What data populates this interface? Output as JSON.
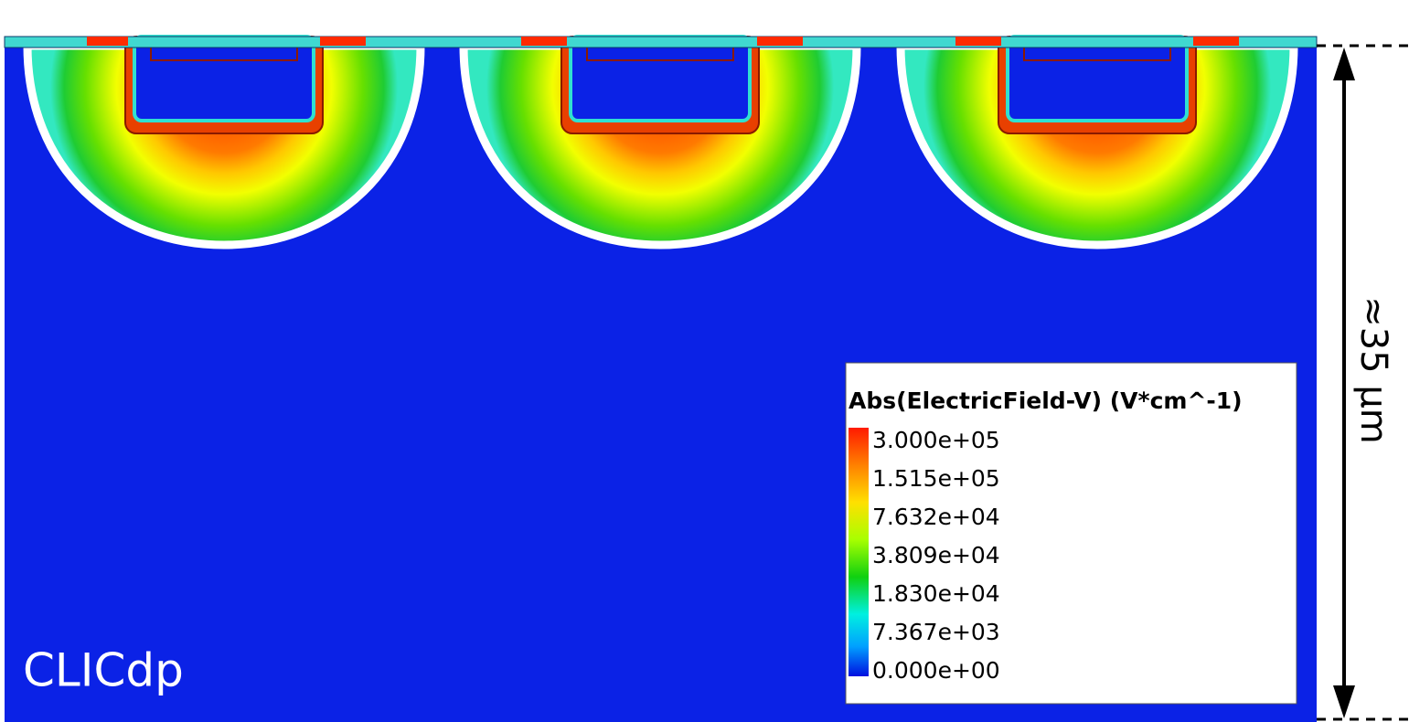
{
  "watermark": "CLICdp",
  "legend": {
    "title": "Abs(ElectricField-V) (V*cm^-1)",
    "labels": [
      "3.000e+05",
      "1.515e+05",
      "7.632e+04",
      "3.809e+04",
      "1.830e+04",
      "7.367e+03",
      "0.000e+00"
    ]
  },
  "scale": {
    "label": "≈35 µm"
  }
}
